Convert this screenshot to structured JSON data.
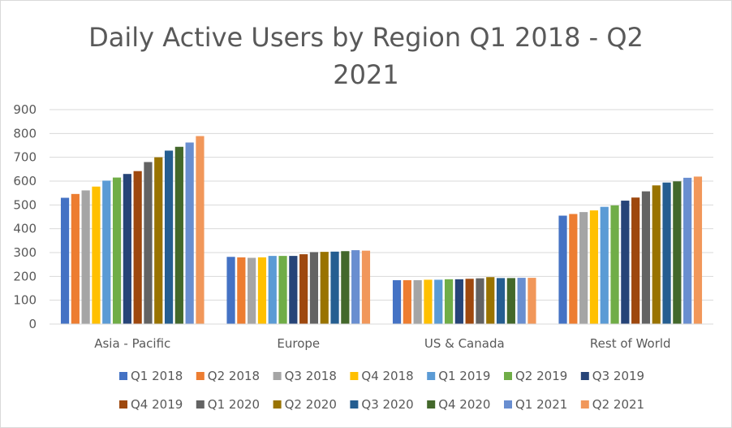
{
  "chart_data": {
    "type": "bar",
    "title": "Daily Active Users by Region Q1 2018 - Q2 2021",
    "xlabel": "",
    "ylabel": "",
    "ylim": [
      0,
      900
    ],
    "yticks": [
      0,
      100,
      200,
      300,
      400,
      500,
      600,
      700,
      800,
      900
    ],
    "grid": true,
    "legend_position": "bottom",
    "categories": [
      "Asia - Pacific",
      "Europe",
      "US & Canada",
      "Rest of World"
    ],
    "series": [
      {
        "name": "Q1 2018",
        "color": "#4472C4",
        "values": [
          530,
          282,
          184,
          455
        ]
      },
      {
        "name": "Q2 2018",
        "color": "#ED7D31",
        "values": [
          546,
          280,
          184,
          462
        ]
      },
      {
        "name": "Q3 2018",
        "color": "#A5A5A5",
        "values": [
          561,
          278,
          184,
          470
        ]
      },
      {
        "name": "Q4 2018",
        "color": "#FFC000",
        "values": [
          577,
          280,
          186,
          477
        ]
      },
      {
        "name": "Q1 2019",
        "color": "#5B9BD5",
        "values": [
          602,
          286,
          186,
          492
        ]
      },
      {
        "name": "Q2 2019",
        "color": "#70AD47",
        "values": [
          615,
          286,
          188,
          498
        ]
      },
      {
        "name": "Q3 2019",
        "color": "#264478",
        "values": [
          630,
          286,
          188,
          518
        ]
      },
      {
        "name": "Q4 2019",
        "color": "#9E480E",
        "values": [
          642,
          293,
          190,
          531
        ]
      },
      {
        "name": "Q1 2020",
        "color": "#636363",
        "values": [
          680,
          302,
          192,
          557
        ]
      },
      {
        "name": "Q2 2020",
        "color": "#997300",
        "values": [
          700,
          303,
          197,
          582
        ]
      },
      {
        "name": "Q3 2020",
        "color": "#255E91",
        "values": [
          728,
          304,
          193,
          594
        ]
      },
      {
        "name": "Q4 2020",
        "color": "#43682B",
        "values": [
          744,
          306,
          193,
          599
        ]
      },
      {
        "name": "Q1 2021",
        "color": "#698ED0",
        "values": [
          762,
          310,
          194,
          614
        ]
      },
      {
        "name": "Q2 2021",
        "color": "#F1975A",
        "values": [
          789,
          308,
          194,
          619
        ]
      }
    ]
  }
}
